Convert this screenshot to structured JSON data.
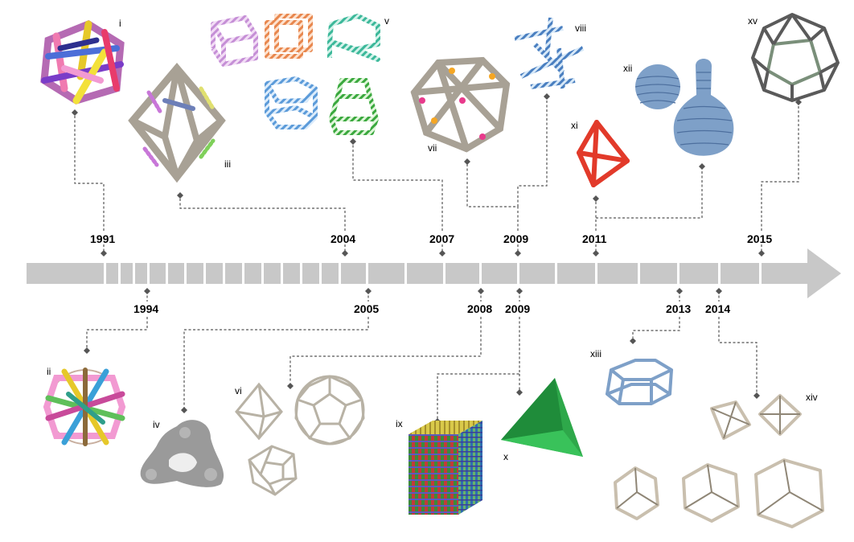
{
  "years_top": [
    "1991",
    "2004",
    "2007",
    "2009",
    "2011",
    "2015"
  ],
  "years_bottom": [
    "1994",
    "2005",
    "2008",
    "2009",
    "2013",
    "2014"
  ],
  "labels": {
    "i": "i",
    "ii": "ii",
    "iii": "iii",
    "iv": "iv",
    "v": "v",
    "vi": "vi",
    "vii": "vii",
    "viii": "viii",
    "ix": "ix",
    "x": "x",
    "xi": "xi",
    "xii": "xii",
    "xiii": "xiii",
    "xiv": "xiv",
    "xv": "xv"
  },
  "colors": {
    "arrow": "#c8c8c8",
    "leader": "#555555",
    "frame": "#c9bfae",
    "frame_dark": "#8f8676",
    "red": "#e23a2a",
    "green": "#25b24a",
    "blue_wire": "#7ea0c8"
  }
}
